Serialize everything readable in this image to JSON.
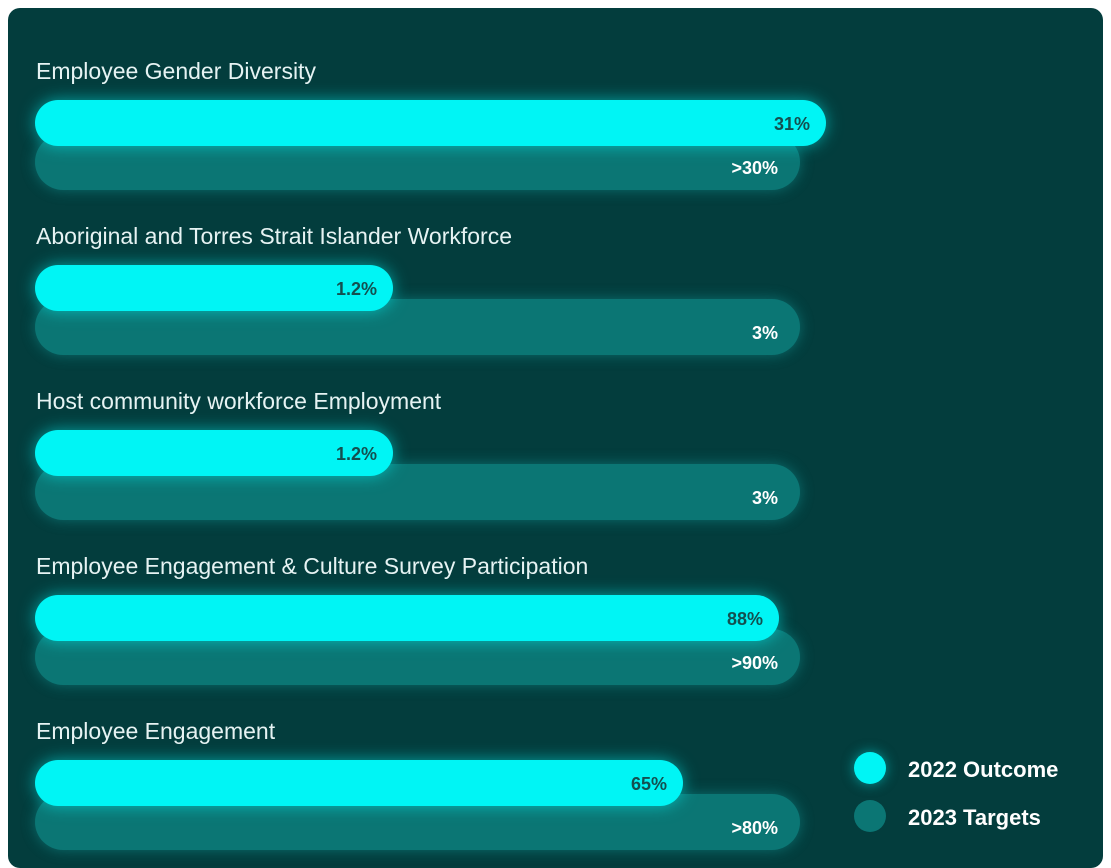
{
  "items": [
    {
      "title": "Employee Gender Diversity",
      "outcome": "31%",
      "target": ">30%"
    },
    {
      "title": "Aboriginal and Torres Strait Islander Workforce",
      "outcome": "1.2%",
      "target": "3%"
    },
    {
      "title": "Host community workforce Employment",
      "outcome": "1.2%",
      "target": "3%"
    },
    {
      "title": "Employee Engagement & Culture Survey Participation",
      "outcome": "88%",
      "target": ">90%"
    },
    {
      "title": "Employee Engagement",
      "outcome": "65%",
      "target": ">80%"
    }
  ],
  "legend": {
    "outcome": "2022 Outcome",
    "target": "2023 Targets"
  }
}
